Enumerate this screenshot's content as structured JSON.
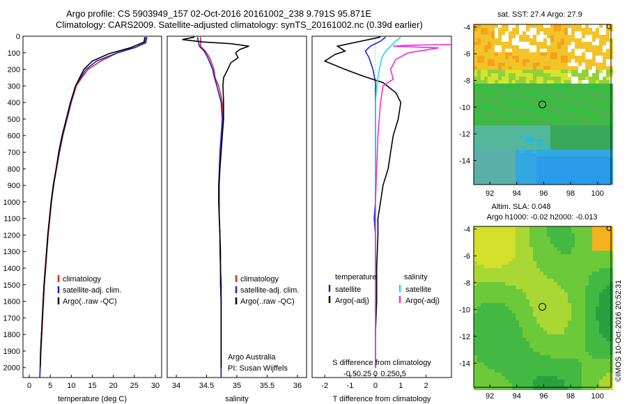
{
  "header": {
    "line1": "Argo profile: CS 5903949_157 02-Oct-2016 20161002_238 9.791S 95.871E",
    "line2": "Climatology: CARS2009. Satellite-adjusted climatology: synTS_20161002.nc (0.39d earlier)"
  },
  "colors": {
    "climatology": "#e8231f",
    "satellite": "#1424d6",
    "argo": "#000000",
    "sal_satellite": "#19d9e6",
    "sal_argo": "#ee29e6"
  },
  "depth_axis": {
    "ticks": [
      0,
      100,
      200,
      300,
      400,
      500,
      600,
      700,
      800,
      900,
      1000,
      1100,
      1200,
      1300,
      1400,
      1500,
      1600,
      1700,
      1800,
      1900,
      2000
    ],
    "ylim": [
      0,
      2060
    ]
  },
  "chart_data": [
    {
      "type": "line",
      "xlabel": "temperature (deg C)",
      "xlim": [
        -1.5,
        31.5
      ],
      "xticks": [
        0,
        5,
        10,
        15,
        20,
        25,
        30
      ],
      "legend": [
        "climatology",
        "satellite-adj. clim.",
        "Argo(..raw -QC)"
      ],
      "series": [
        {
          "name": "climatology",
          "points": [
            [
              27.8,
              5
            ],
            [
              27.5,
              40
            ],
            [
              25,
              70
            ],
            [
              21,
              100
            ],
            [
              17,
              150
            ],
            [
              14,
              200
            ],
            [
              12.5,
              250
            ],
            [
              11.2,
              300
            ],
            [
              10,
              400
            ],
            [
              9,
              500
            ],
            [
              8,
              600
            ],
            [
              7.2,
              700
            ],
            [
              6.5,
              800
            ],
            [
              5.8,
              900
            ],
            [
              5.3,
              1000
            ],
            [
              4.9,
              1100
            ],
            [
              4.5,
              1200
            ],
            [
              4.2,
              1300
            ],
            [
              3.9,
              1400
            ],
            [
              3.6,
              1500
            ],
            [
              3.4,
              1600
            ],
            [
              3.2,
              1700
            ],
            [
              3,
              1800
            ],
            [
              2.8,
              1900
            ],
            [
              2.6,
              2000
            ],
            [
              2.5,
              2060
            ]
          ]
        },
        {
          "name": "satellite-adj. clim.",
          "points": [
            [
              28,
              5
            ],
            [
              27.7,
              40
            ],
            [
              25.5,
              65
            ],
            [
              21,
              100
            ],
            [
              16,
              150
            ],
            [
              13.5,
              200
            ],
            [
              12.2,
              250
            ],
            [
              11,
              300
            ],
            [
              9.9,
              400
            ],
            [
              8.9,
              500
            ],
            [
              7.9,
              600
            ],
            [
              7.1,
              700
            ],
            [
              6.4,
              800
            ],
            [
              5.8,
              900
            ],
            [
              5.2,
              1000
            ],
            [
              4.8,
              1100
            ],
            [
              4.4,
              1200
            ],
            [
              4.1,
              1300
            ],
            [
              3.8,
              1400
            ],
            [
              3.5,
              1500
            ],
            [
              3.3,
              1600
            ],
            [
              3.1,
              1700
            ],
            [
              2.9,
              1800
            ],
            [
              2.7,
              1900
            ],
            [
              2.6,
              2000
            ],
            [
              2.5,
              2060
            ]
          ]
        },
        {
          "name": "Argo(..raw -QC)",
          "points": [
            [
              27.5,
              5
            ],
            [
              27.3,
              35
            ],
            [
              24,
              70
            ],
            [
              19,
              105
            ],
            [
              15,
              150
            ],
            [
              13,
              200
            ],
            [
              12,
              250
            ],
            [
              11,
              300
            ],
            [
              9.8,
              400
            ],
            [
              8.8,
              500
            ],
            [
              7.8,
              600
            ],
            [
              7,
              700
            ],
            [
              6.4,
              800
            ],
            [
              5.7,
              900
            ],
            [
              5.2,
              1000
            ],
            [
              4.8,
              1100
            ],
            [
              4.4,
              1200
            ],
            [
              4.1,
              1300
            ],
            [
              3.8,
              1400
            ],
            [
              3.5,
              1500
            ],
            [
              3.3,
              1600
            ],
            [
              3.1,
              1700
            ],
            [
              2.9,
              1800
            ],
            [
              2.7,
              1900
            ],
            [
              2.6,
              2000
            ]
          ]
        }
      ]
    },
    {
      "type": "line",
      "xlabel": "salinity",
      "xlim": [
        33.85,
        36.15
      ],
      "xticks": [
        34,
        34.5,
        35,
        35.5,
        36
      ],
      "legend": [
        "climatology",
        "satellite-adj. clim.",
        "Argo(..raw -QC)"
      ],
      "annotations": [
        "Argo Australia",
        "PI: Susan Wijffels"
      ],
      "series": [
        {
          "name": "climatology",
          "points": [
            [
              34.4,
              5
            ],
            [
              34.4,
              60
            ],
            [
              34.48,
              90
            ],
            [
              34.55,
              130
            ],
            [
              34.62,
              200
            ],
            [
              34.64,
              250
            ],
            [
              34.7,
              300
            ],
            [
              34.76,
              400
            ],
            [
              34.77,
              500
            ],
            [
              34.75,
              600
            ],
            [
              34.73,
              700
            ],
            [
              34.72,
              800
            ],
            [
              34.71,
              900
            ],
            [
              34.71,
              1000
            ],
            [
              34.71,
              1100
            ],
            [
              34.72,
              1200
            ],
            [
              34.72,
              1300
            ],
            [
              34.73,
              1400
            ],
            [
              34.73,
              1500
            ],
            [
              34.74,
              1600
            ],
            [
              34.74,
              1700
            ],
            [
              34.74,
              1800
            ],
            [
              34.74,
              1900
            ],
            [
              34.74,
              2000
            ],
            [
              34.74,
              2060
            ]
          ]
        },
        {
          "name": "satellite-adj. clim.",
          "points": [
            [
              34.35,
              5
            ],
            [
              34.38,
              60
            ],
            [
              34.46,
              90
            ],
            [
              34.52,
              130
            ],
            [
              34.6,
              200
            ],
            [
              34.63,
              250
            ],
            [
              34.67,
              300
            ],
            [
              34.74,
              400
            ],
            [
              34.76,
              500
            ],
            [
              34.74,
              600
            ],
            [
              34.72,
              700
            ],
            [
              34.71,
              800
            ],
            [
              34.7,
              900
            ],
            [
              34.7,
              1000
            ],
            [
              34.71,
              1100
            ],
            [
              34.72,
              1200
            ],
            [
              34.72,
              1300
            ],
            [
              34.73,
              1400
            ],
            [
              34.73,
              1500
            ],
            [
              34.74,
              1600
            ],
            [
              34.74,
              1700
            ],
            [
              34.74,
              1800
            ],
            [
              34.74,
              1900
            ],
            [
              34.74,
              2000
            ],
            [
              34.74,
              2060
            ]
          ]
        },
        {
          "name": "Argo(..raw -QC)",
          "points": [
            [
              34.3,
              5
            ],
            [
              34.1,
              20
            ],
            [
              34.45,
              35
            ],
            [
              34.9,
              45
            ],
            [
              35.2,
              60
            ],
            [
              35.05,
              80
            ],
            [
              34.98,
              100
            ],
            [
              35.02,
              130
            ],
            [
              34.9,
              160
            ],
            [
              34.85,
              200
            ],
            [
              34.78,
              250
            ],
            [
              34.77,
              300
            ],
            [
              34.78,
              400
            ],
            [
              34.78,
              500
            ],
            [
              34.76,
              600
            ],
            [
              34.74,
              700
            ],
            [
              34.72,
              800
            ],
            [
              34.7,
              900
            ],
            [
              34.7,
              1000
            ],
            [
              34.71,
              1100
            ],
            [
              34.72,
              1200
            ],
            [
              34.73,
              1300
            ],
            [
              34.73,
              1400
            ],
            [
              34.74,
              1500
            ],
            [
              34.74,
              1600
            ],
            [
              34.74,
              1700
            ],
            [
              34.74,
              1800
            ],
            [
              34.74,
              1900
            ],
            [
              34.74,
              2000
            ]
          ]
        }
      ]
    },
    {
      "type": "line",
      "xlabel": "T difference from climatology",
      "xlabel2": "S difference from climatology",
      "xlim": [
        -2.5,
        3
      ],
      "xticks": [
        -2,
        -1,
        0,
        1,
        2
      ],
      "xticks_s": [
        {
          "v": -0.5,
          "label": "-0.5"
        },
        {
          "v": -0.25,
          "label": "-0.25"
        },
        {
          "v": 0,
          "label": "0"
        },
        {
          "v": 0.25,
          "label": "0.25"
        },
        {
          "v": 0.5,
          "label": "0.5"
        }
      ],
      "legend_t_title": "temperature",
      "legend_s_title": "salinity",
      "legend": [
        "satellite",
        "Argo(-adj)",
        "satellite",
        "Argo(-adj)"
      ],
      "series": [
        {
          "name": "satellite",
          "points": [
            [
              0.4,
              5
            ],
            [
              0.2,
              30
            ],
            [
              -0.2,
              60
            ],
            [
              -0.4,
              90
            ],
            [
              -0.25,
              130
            ],
            [
              -0.1,
              200
            ],
            [
              0,
              280
            ],
            [
              0,
              400
            ],
            [
              0,
              600
            ],
            [
              0,
              800
            ],
            [
              0,
              1000
            ],
            [
              -0.05,
              1100
            ],
            [
              0,
              1200
            ],
            [
              0,
              1400
            ],
            [
              0,
              1600
            ],
            [
              0,
              1800
            ],
            [
              0,
              2000
            ]
          ]
        },
        {
          "name": "Argo(-adj)",
          "points": [
            [
              0.2,
              5
            ],
            [
              -1.5,
              60
            ],
            [
              -1.2,
              90
            ],
            [
              -1.6,
              110
            ],
            [
              -2,
              150
            ],
            [
              -1.2,
              200
            ],
            [
              -0.5,
              240
            ],
            [
              0.3,
              280
            ],
            [
              0.8,
              340
            ],
            [
              1,
              400
            ],
            [
              0.9,
              500
            ],
            [
              0.7,
              600
            ],
            [
              0.6,
              700
            ],
            [
              0.5,
              800
            ],
            [
              0.3,
              900
            ],
            [
              0.2,
              1000
            ],
            [
              0.1,
              1100
            ],
            [
              0.1,
              1200
            ],
            [
              0.05,
              1400
            ],
            [
              0.05,
              1600
            ],
            [
              0,
              1800
            ],
            [
              0,
              2000
            ]
          ]
        },
        {
          "name": "sal-satellite",
          "points": [
            [
              1,
              5
            ],
            [
              0.8,
              30
            ],
            [
              0.6,
              60
            ],
            [
              0.4,
              90
            ],
            [
              0.25,
              130
            ],
            [
              0.15,
              200
            ],
            [
              0.05,
              300
            ],
            [
              0,
              400
            ],
            [
              0,
              600
            ],
            [
              0,
              800
            ],
            [
              0,
              1000
            ],
            [
              0,
              1200
            ],
            [
              0,
              1400
            ],
            [
              0,
              1600
            ],
            [
              0,
              1800
            ],
            [
              0,
              2000
            ]
          ]
        },
        {
          "name": "sal-argo",
          "points": [
            [
              3,
              50
            ],
            [
              1.2,
              55
            ],
            [
              0.7,
              60
            ],
            [
              2.5,
              70
            ],
            [
              1.3,
              100
            ],
            [
              0.8,
              140
            ],
            [
              0.6,
              200
            ],
            [
              0.7,
              260
            ],
            [
              0.3,
              300
            ],
            [
              0.2,
              400
            ],
            [
              0.1,
              600
            ],
            [
              0.05,
              800
            ],
            [
              0,
              1000
            ],
            [
              0,
              1200
            ],
            [
              0,
              1400
            ],
            [
              0,
              1600
            ],
            [
              0,
              1800
            ],
            [
              0,
              2000
            ]
          ]
        }
      ]
    },
    {
      "type": "heatmap",
      "title": "sat. SST: 27.4  Argo: 27.9",
      "xlim": [
        90.8,
        101
      ],
      "ylim": [
        -15.8,
        -3.8
      ],
      "xticks": [
        92,
        94,
        96,
        98,
        100
      ],
      "yticks": [
        -4,
        -6,
        -8,
        -10,
        -12,
        -14
      ],
      "marker": [
        95.9,
        -9.8
      ]
    },
    {
      "type": "heatmap",
      "title": "Altim. SLA: 0.048",
      "subtitle": "Argo h1000: -0.02  h2000: -0.013",
      "xlim": [
        90.8,
        101
      ],
      "ylim": [
        -15.8,
        -3.8
      ],
      "xticks": [
        92,
        94,
        96,
        98,
        100
      ],
      "yticks": [
        -4,
        -6,
        -8,
        -10,
        -12,
        -14
      ],
      "marker": [
        95.9,
        -9.8
      ]
    }
  ],
  "footer": {
    "credit": "©IMOS 10-Oct-2016 20:52:31"
  }
}
